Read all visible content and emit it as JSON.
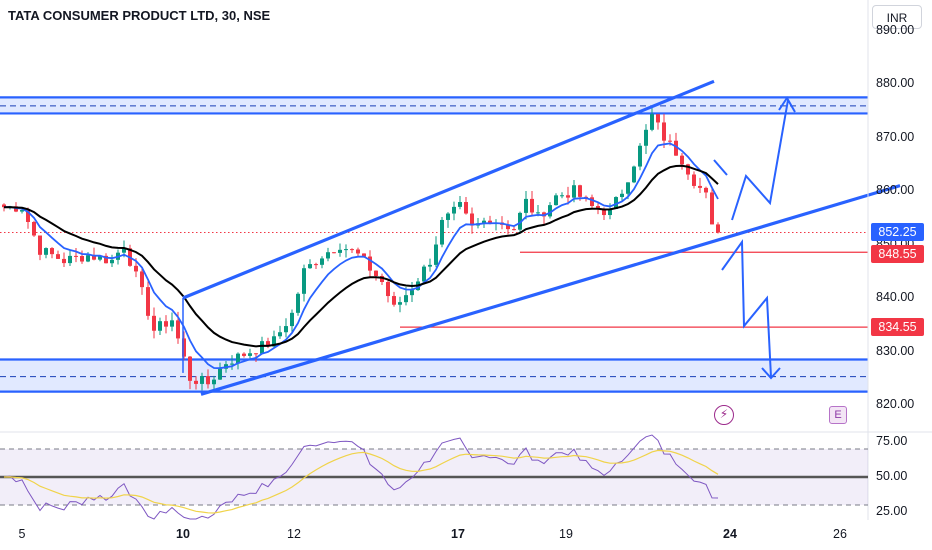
{
  "header": {
    "title": "TATA CONSUMER PRODUCT LTD, 30, NSE",
    "currency": "INR"
  },
  "price_axis": {
    "top_partial": "890.00",
    "ticks": [
      "880.00",
      "870.00",
      "860.00",
      "850.00",
      "840.00",
      "830.00",
      "820.00"
    ],
    "tags": [
      {
        "label": "852.25",
        "value": 852.25,
        "color": "#2962ff"
      },
      {
        "label": "848.55",
        "value": 848.55,
        "color": "#f23645"
      },
      {
        "label": "834.55",
        "value": 834.55,
        "color": "#f23645"
      }
    ]
  },
  "rsi_axis": {
    "ticks": [
      "75.00",
      "50.00",
      "25.00"
    ]
  },
  "time_axis": {
    "labels": [
      {
        "text": "5",
        "bold": false
      },
      {
        "text": "10",
        "bold": true
      },
      {
        "text": "12",
        "bold": false
      },
      {
        "text": "17",
        "bold": true
      },
      {
        "text": "19",
        "bold": false
      },
      {
        "text": "24",
        "bold": true
      },
      {
        "text": "26",
        "bold": false
      }
    ]
  },
  "icons": {
    "alert": "lightning-icon",
    "events": "E"
  },
  "chart_data": {
    "type": "candlestick",
    "symbol": "TATA CONSUMER PRODUCT LTD",
    "interval": "30",
    "exchange": "NSE",
    "price_range": [
      818,
      890
    ],
    "close_path_anchors": [
      [
        0,
        857
      ],
      [
        3,
        857
      ],
      [
        6,
        849
      ],
      [
        10,
        847
      ],
      [
        14,
        848
      ],
      [
        18,
        847
      ],
      [
        20,
        850
      ],
      [
        23,
        841
      ],
      [
        25,
        834
      ],
      [
        28,
        836
      ],
      [
        31,
        825
      ],
      [
        34,
        824
      ],
      [
        37,
        828
      ],
      [
        41,
        830
      ],
      [
        45,
        832
      ],
      [
        48,
        837
      ],
      [
        50,
        845
      ],
      [
        53,
        848
      ],
      [
        56,
        850
      ],
      [
        59,
        848
      ],
      [
        63,
        843
      ],
      [
        65,
        838
      ],
      [
        68,
        842
      ],
      [
        71,
        847
      ],
      [
        73,
        854
      ],
      [
        76,
        857
      ],
      [
        78,
        853
      ],
      [
        81,
        855
      ],
      [
        85,
        853
      ],
      [
        87,
        858
      ],
      [
        89,
        855
      ],
      [
        92,
        859
      ],
      [
        95,
        860
      ],
      [
        98,
        857
      ],
      [
        101,
        856
      ],
      [
        103,
        860
      ],
      [
        106,
        868
      ],
      [
        108,
        874
      ],
      [
        110,
        870
      ],
      [
        113,
        866
      ],
      [
        115,
        862
      ],
      [
        117,
        859
      ],
      [
        118,
        853
      ],
      [
        119,
        852.25
      ]
    ],
    "moving_averages": [
      {
        "color": "#2962ff",
        "type": "fast MA"
      },
      {
        "color": "#000000",
        "type": "slow MA"
      }
    ],
    "support_resistance_zones": [
      {
        "top": 877.5,
        "mid": 875.9,
        "bottom": 874.5,
        "color": "#2962ff"
      },
      {
        "top": 828.5,
        "mid": 825.3,
        "bottom": 822.5,
        "color": "#2962ff"
      }
    ],
    "horizontal_levels": [
      848.55,
      834.55
    ],
    "rsi": {
      "upper_band": 70,
      "mid": 50,
      "lower_band": 30,
      "last_value": 35
    },
    "x_labels": [
      "5",
      "10",
      "12",
      "17",
      "19",
      "24",
      "26"
    ]
  }
}
